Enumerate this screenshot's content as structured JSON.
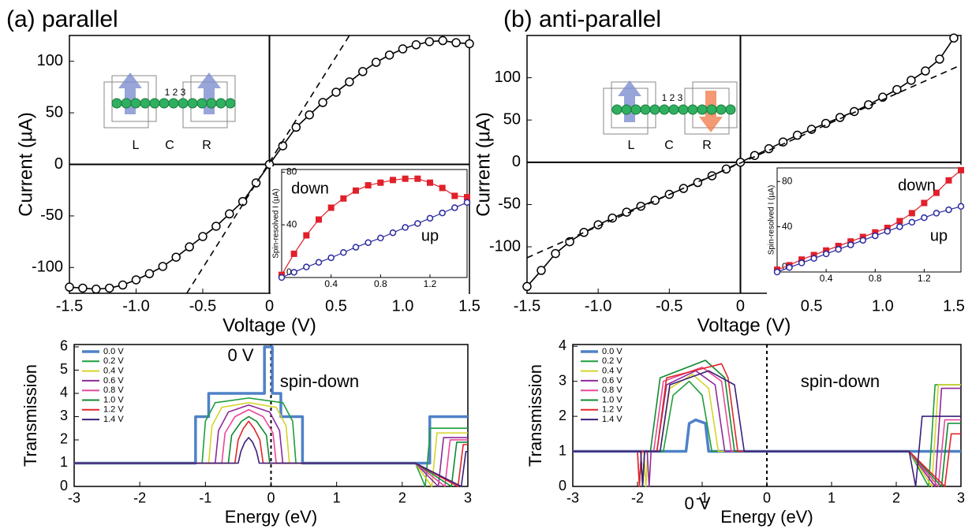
{
  "chart_data": [
    {
      "type": "line",
      "title": "(a) parallel",
      "xlabel": "Voltage (V)",
      "ylabel": "Current (µA)",
      "xlim": [
        -1.5,
        1.5
      ],
      "ylim": [
        -125,
        125
      ],
      "xticks": [
        -1.5,
        {
          "value": -1,
          "label": "-1.0"
        },
        -0.5,
        0,
        0.5,
        {
          "value": 1,
          "label": "1.0"
        },
        1.5
      ],
      "yticks": [
        -100,
        -50,
        0,
        50,
        100
      ],
      "zero_lines": true,
      "annotations": [
        "L",
        "C",
        "R",
        "1 2 3"
      ],
      "x": [
        -1.5,
        -1.4,
        -1.3,
        -1.2,
        -1.1,
        -1.0,
        -0.9,
        -0.8,
        -0.7,
        -0.6,
        -0.5,
        -0.4,
        -0.3,
        -0.2,
        -0.1,
        0,
        0.1,
        0.2,
        0.3,
        0.4,
        0.5,
        0.6,
        0.7,
        0.8,
        0.9,
        1.0,
        1.1,
        1.2,
        1.3,
        1.4,
        1.5
      ],
      "series": [
        {
          "color": "#000000",
          "marker": "open-circle",
          "values": [
            -119,
            -120,
            -121,
            -120,
            -117,
            -112,
            -106,
            -99,
            -90,
            -80,
            -70,
            -60,
            -48,
            -36,
            -18,
            0,
            18,
            36,
            48,
            60,
            70,
            80,
            90,
            99,
            106,
            112,
            116,
            119,
            120,
            118,
            117
          ]
        },
        {
          "color": "#000000",
          "dashed": true,
          "x": [
            -0.62,
            0.6
          ],
          "values": [
            -125,
            125
          ]
        }
      ]
    },
    {
      "type": "line",
      "ylabel": "Spin-resolved I (µA)",
      "xlim": [
        0,
        1.5
      ],
      "ylim": [
        0,
        82
      ],
      "xticks": [
        0.4,
        0.8,
        1.2
      ],
      "yticks": [
        0,
        40,
        80
      ],
      "annotations": [
        "down",
        "up"
      ],
      "x": [
        0,
        0.1,
        0.2,
        0.3,
        0.4,
        0.5,
        0.6,
        0.7,
        0.8,
        0.9,
        1.0,
        1.1,
        1.2,
        1.3,
        1.4,
        1.5
      ],
      "series": [
        {
          "color": "#e0202a",
          "marker": "square",
          "values": [
            2,
            18,
            32,
            44,
            53,
            60,
            66,
            70,
            72,
            74,
            75,
            75,
            72,
            68,
            62,
            61
          ]
        },
        {
          "color": "#2a2aa0",
          "marker": "open-circle",
          "values": [
            0,
            4,
            8,
            11.5,
            15,
            19,
            23,
            26.5,
            30,
            34,
            38,
            41,
            45,
            49,
            53,
            57
          ]
        }
      ]
    },
    {
      "type": "line",
      "xlabel": "Energy (eV)",
      "ylabel": "Transmission",
      "xlim": [
        -3,
        3
      ],
      "ylim": [
        0,
        6.1
      ],
      "xticks": [
        -3,
        -2,
        -1,
        0,
        1,
        2,
        3
      ],
      "yticks": [
        0,
        1,
        2,
        3,
        4,
        5,
        6
      ],
      "vline": 0,
      "legend": "upper left",
      "annotations": [
        "0 V",
        "spin-down"
      ],
      "series": [
        {
          "name": "0.0 V",
          "color": "#4f81c7",
          "linewidth": 3.5,
          "x": [
            -3,
            -1.15,
            -1.15,
            -0.95,
            -0.95,
            -0.1,
            -0.1,
            0.02,
            0.02,
            0.15,
            0.15,
            0.48,
            0.48,
            2.42,
            2.42,
            3
          ],
          "values": [
            1,
            1,
            3,
            3,
            4,
            4,
            6,
            6,
            4,
            4,
            3,
            3,
            1,
            1,
            3,
            3
          ]
        },
        {
          "name": "0.2 V",
          "color": "#1f9e3a",
          "x": [
            -3,
            -1.05,
            -1.0,
            -0.85,
            -0.34,
            0.18,
            0.33,
            0.38,
            2.2,
            2.35,
            2.43,
            3
          ],
          "values": [
            1,
            1,
            2.8,
            3.6,
            3.8,
            3.6,
            2.8,
            1,
            1,
            0,
            2.5,
            2.5
          ]
        },
        {
          "name": "0.4 V",
          "color": "#d4d42a",
          "x": [
            -3,
            -0.95,
            -0.9,
            -0.75,
            -0.34,
            0.08,
            0.23,
            0.28,
            2.2,
            2.45,
            2.53,
            3
          ],
          "values": [
            1,
            1,
            2.6,
            3.4,
            3.6,
            3.4,
            2.6,
            1,
            1,
            0,
            2.3,
            2.3
          ]
        },
        {
          "name": "0.6 V",
          "color": "#8e2a9c",
          "x": [
            -3,
            -0.85,
            -0.8,
            -0.65,
            -0.34,
            -0.02,
            0.13,
            0.18,
            2.2,
            2.55,
            2.63,
            3
          ],
          "values": [
            1,
            1,
            2.4,
            3.2,
            3.5,
            3.2,
            2.4,
            1,
            1,
            0,
            2.1,
            2.1
          ]
        },
        {
          "name": "0.8 V",
          "color": "#e8489a",
          "x": [
            -3,
            -0.75,
            -0.7,
            -0.55,
            -0.34,
            -0.12,
            0.03,
            0.08,
            2.2,
            2.65,
            2.73,
            3
          ],
          "values": [
            1,
            1,
            2.3,
            3.0,
            3.3,
            3.0,
            2.3,
            1,
            1,
            0,
            2.0,
            2.0
          ]
        },
        {
          "name": "1.0 V",
          "color": "#0f8a30",
          "x": [
            -3,
            -0.65,
            -0.6,
            -0.45,
            -0.34,
            -0.22,
            -0.07,
            -0.02,
            2.2,
            2.75,
            2.83,
            3
          ],
          "values": [
            1,
            1,
            2.2,
            2.8,
            3.0,
            2.8,
            2.2,
            1,
            1,
            0,
            1.9,
            1.9
          ]
        },
        {
          "name": "1.2 V",
          "color": "#e0262a",
          "x": [
            -3,
            -0.55,
            -0.5,
            -0.42,
            -0.34,
            -0.26,
            -0.17,
            -0.12,
            2.2,
            2.85,
            2.93,
            3
          ],
          "values": [
            1,
            1,
            2.0,
            2.5,
            2.8,
            2.5,
            2.0,
            1,
            1,
            0,
            1.8,
            1.8
          ]
        },
        {
          "name": "1.4 V",
          "color": "#3b1f7a",
          "x": [
            -3,
            -0.5,
            -0.46,
            -0.4,
            -0.34,
            -0.28,
            -0.22,
            -0.18,
            2.2,
            2.9,
            2.97,
            3
          ],
          "values": [
            1,
            1,
            1.5,
            1.9,
            2.1,
            1.9,
            1.5,
            1,
            1,
            0,
            1.5,
            1.5
          ]
        }
      ]
    },
    {
      "type": "line",
      "title": "(b) anti-parallel",
      "xlabel": "Voltage (V)",
      "ylabel": "Current (µA)",
      "xlim": [
        -1.5,
        1.55
      ],
      "ylim": [
        -155,
        150
      ],
      "xticks": [
        -1.5,
        {
          "value": -1,
          "label": "-1.0"
        },
        -0.5,
        0,
        0.5,
        {
          "value": 1,
          "label": "1.0"
        },
        1.5
      ],
      "yticks": [
        -100,
        -50,
        0,
        50,
        100
      ],
      "zero_lines": true,
      "annotations": [
        "L",
        "C",
        "R",
        "1 2 3"
      ],
      "x": [
        -1.5,
        -1.4,
        -1.3,
        -1.2,
        -1.1,
        -1.0,
        -0.9,
        -0.8,
        -0.7,
        -0.6,
        -0.5,
        -0.4,
        -0.3,
        -0.2,
        -0.1,
        0,
        0.1,
        0.2,
        0.3,
        0.4,
        0.5,
        0.6,
        0.7,
        0.8,
        0.9,
        1.0,
        1.1,
        1.2,
        1.3,
        1.4,
        1.5
      ],
      "series": [
        {
          "color": "#000000",
          "marker": "open-circle",
          "values": [
            -147,
            -128,
            -108,
            -94,
            -83,
            -74,
            -66,
            -59,
            -52,
            -45,
            -38,
            -31,
            -24,
            -16,
            -8,
            0,
            8,
            16,
            24,
            32,
            39,
            46,
            53,
            60,
            68,
            77,
            86,
            97,
            108,
            122,
            147
          ]
        },
        {
          "color": "#000000",
          "dashed": true,
          "x": [
            -1.5,
            1.55
          ],
          "values": [
            -113,
            115
          ]
        }
      ]
    },
    {
      "type": "line",
      "ylabel": "Spin-resolved I (µA)",
      "xlim": [
        0,
        1.5
      ],
      "ylim": [
        0,
        92
      ],
      "xticks": [
        0.4,
        0.8,
        1.2
      ],
      "yticks": [
        0,
        40,
        80
      ],
      "annotations": [
        "down",
        "up"
      ],
      "x": [
        0,
        0.1,
        0.2,
        0.3,
        0.4,
        0.5,
        0.6,
        0.7,
        0.8,
        0.9,
        1.0,
        1.1,
        1.2,
        1.3,
        1.4,
        1.5
      ],
      "series": [
        {
          "color": "#e0202a",
          "marker": "square",
          "values": [
            2,
            6,
            11,
            15,
            19,
            23,
            27,
            31,
            35,
            39,
            45,
            52,
            61,
            70,
            81,
            90
          ]
        },
        {
          "color": "#2a2aa0",
          "marker": "open-circle",
          "values": [
            0,
            4,
            8,
            12,
            16,
            20,
            24,
            28,
            32,
            36,
            40,
            44,
            48,
            52,
            55,
            58
          ]
        }
      ]
    },
    {
      "type": "line",
      "xlabel": "Energy (eV)",
      "ylabel": "Transmission",
      "xlim": [
        -3,
        3
      ],
      "ylim": [
        0,
        4.05
      ],
      "xticks": [
        -3,
        -2,
        -1,
        0,
        1,
        2,
        3
      ],
      "yticks": [
        0,
        1,
        2,
        3,
        4
      ],
      "vline": 0,
      "legend": "upper left",
      "annotations": [
        "0 V",
        "spin-down"
      ],
      "series": [
        {
          "name": "0.0 V",
          "color": "#4f81c7",
          "linewidth": 3.5,
          "x": [
            -3,
            -1.25,
            -1.2,
            -1.1,
            -0.95,
            -0.9,
            3
          ],
          "values": [
            1,
            1,
            1.8,
            1.9,
            1.8,
            1,
            1
          ]
        },
        {
          "name": "0.2 V",
          "color": "#1f9e3a",
          "x": [
            -3,
            -1.95,
            -1.92,
            -1.89,
            -1.6,
            -1.45,
            -1.2,
            -1.0,
            -0.85,
            2.2,
            2.5,
            2.6,
            3
          ],
          "values": [
            1,
            1,
            0,
            1,
            1,
            2.6,
            3.0,
            2.6,
            1,
            1,
            0,
            2.9,
            2.9
          ]
        },
        {
          "name": "0.4 V",
          "color": "#d4d42a",
          "x": [
            -3,
            -1.9,
            -1.87,
            -1.84,
            -1.65,
            -1.5,
            -1.15,
            -0.9,
            -0.75,
            2.2,
            2.55,
            2.65,
            3
          ],
          "values": [
            1,
            1,
            0,
            1,
            1,
            2.8,
            3.2,
            2.8,
            1,
            1,
            0,
            2.9,
            2.9
          ]
        },
        {
          "name": "0.6 V",
          "color": "#8e2a9c",
          "x": [
            -3,
            -1.85,
            -1.82,
            -1.79,
            -1.7,
            -1.55,
            -1.1,
            -0.8,
            -0.65,
            2.2,
            2.6,
            2.7,
            3
          ],
          "values": [
            1,
            1,
            0,
            1,
            1,
            2.9,
            3.3,
            2.9,
            1,
            1,
            0,
            2.8,
            2.8
          ]
        },
        {
          "name": "0.8 V",
          "color": "#e8489a",
          "x": [
            -3,
            -2.0,
            -1.97,
            -1.94,
            -1.75,
            -1.6,
            -1.0,
            -0.7,
            -0.55,
            2.2,
            2.65,
            2.75,
            3
          ],
          "values": [
            1,
            1,
            0,
            1,
            1,
            3.0,
            3.4,
            3.0,
            1,
            1,
            0,
            1.9,
            1.9
          ]
        },
        {
          "name": "1.0 V",
          "color": "#0f8a30",
          "x": [
            -3,
            -1.95,
            -1.92,
            -1.89,
            -1.8,
            -1.65,
            -0.95,
            -0.65,
            -0.5,
            2.2,
            2.7,
            2.8,
            3
          ],
          "values": [
            1,
            1,
            0,
            1,
            1,
            3.1,
            3.6,
            3.1,
            1,
            1,
            0,
            1.8,
            1.8
          ]
        },
        {
          "name": "1.2 V",
          "color": "#e0262a",
          "x": [
            -3,
            -2.0,
            -1.97,
            -1.94,
            -1.7,
            -1.55,
            -0.7,
            -0.6,
            -0.45,
            2.2,
            2.75,
            2.85,
            3
          ],
          "values": [
            1,
            1,
            0,
            1,
            1,
            3.1,
            3.5,
            3.1,
            1,
            1,
            0,
            1.5,
            1.5
          ]
        },
        {
          "name": "1.4 V",
          "color": "#3b1f7a",
          "x": [
            -3,
            -1.95,
            -1.92,
            -1.89,
            -1.65,
            -1.5,
            -0.9,
            -0.5,
            -0.35,
            2.2,
            2.3,
            2.4,
            3
          ],
          "values": [
            1,
            1,
            0,
            1,
            1,
            2.9,
            3.3,
            2.9,
            1,
            1,
            0,
            2.0,
            2.0
          ]
        }
      ]
    }
  ]
}
